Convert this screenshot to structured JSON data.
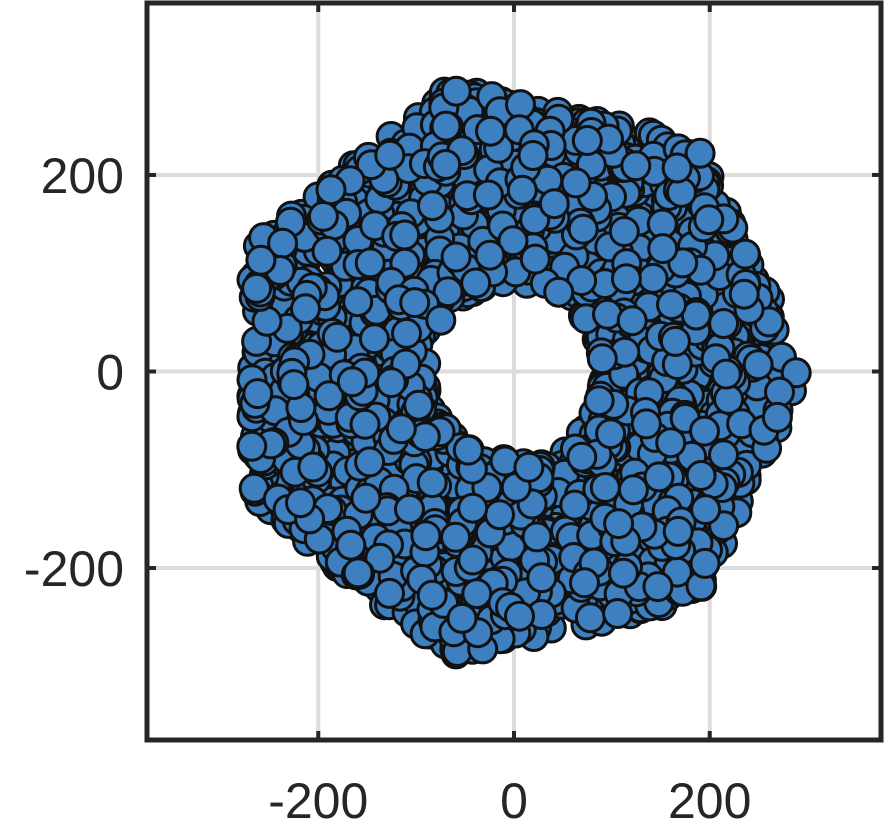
{
  "chart_data": {
    "type": "scatter",
    "title": "",
    "xlabel": "",
    "ylabel": "",
    "xlim": [
      -375,
      375
    ],
    "ylim": [
      -375,
      375
    ],
    "xticks": [
      -200,
      0,
      200
    ],
    "yticks": [
      -200,
      0,
      200
    ],
    "grid": true,
    "legend": "none",
    "marker_color": "#3d7fbf",
    "marker_edge_color": "#111111",
    "series": [
      {
        "generator": "ring",
        "count": 2400,
        "inner_radius": 90,
        "outer_radius": 320,
        "sides": 7,
        "center": [
          0,
          0
        ]
      }
    ]
  }
}
